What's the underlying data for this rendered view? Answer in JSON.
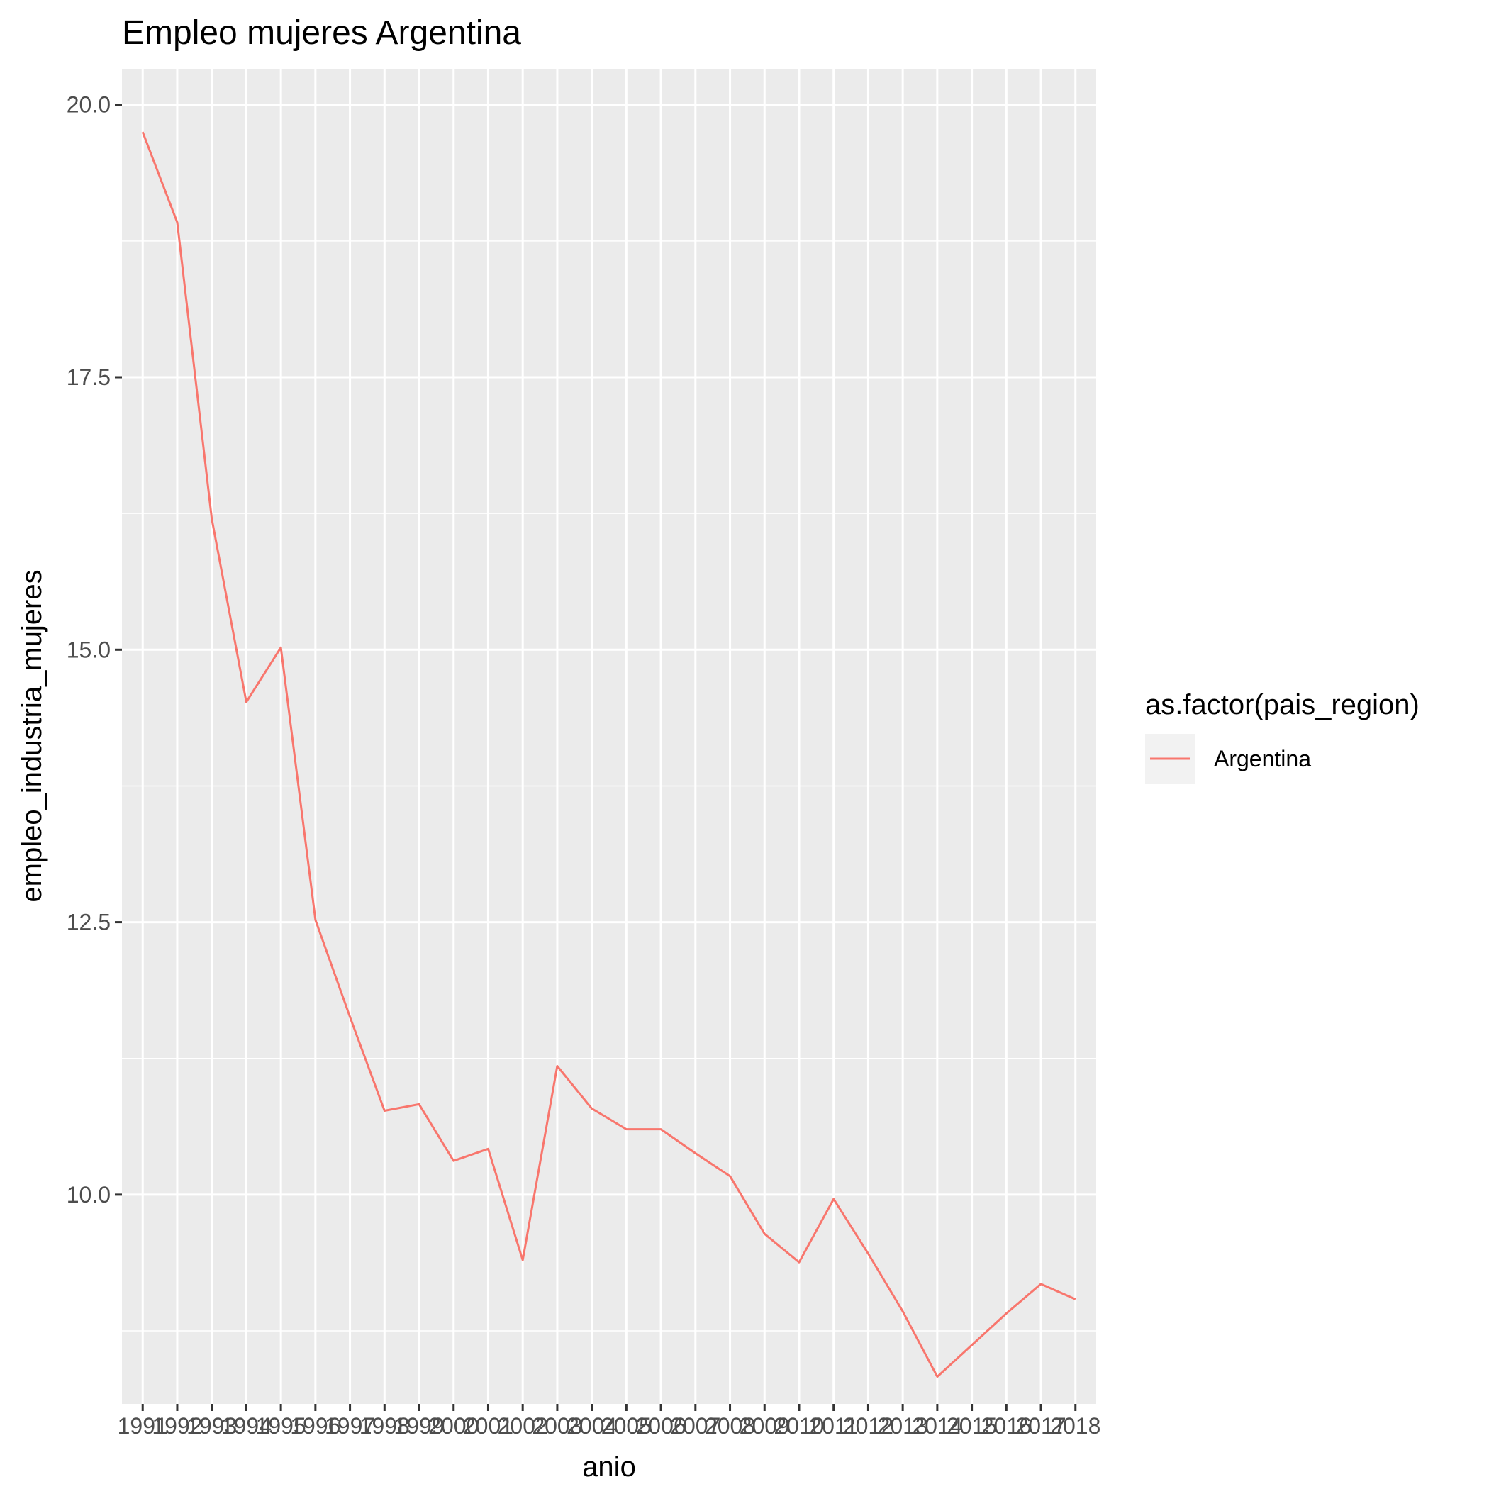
{
  "chart_data": {
    "type": "line",
    "title": "Empleo mujeres Argentina",
    "xlabel": "anio",
    "ylabel": "empleo_industria_mujeres",
    "categories": [
      "1991",
      "1992",
      "1993",
      "1994",
      "1995",
      "1996",
      "1997",
      "1998",
      "1999",
      "2000",
      "2001",
      "2002",
      "2003",
      "2004",
      "2005",
      "2006",
      "2007",
      "2008",
      "2009",
      "2010",
      "2011",
      "2012",
      "2013",
      "2014",
      "2015",
      "2016",
      "2017",
      "2018"
    ],
    "series": [
      {
        "name": "Argentina",
        "color": "#F8766D",
        "values": [
          19.75,
          18.92,
          16.2,
          14.52,
          15.02,
          12.52,
          11.63,
          10.77,
          10.83,
          10.31,
          10.42,
          9.4,
          11.18,
          10.79,
          10.6,
          10.6,
          10.38,
          10.17,
          9.64,
          9.38,
          9.96,
          9.46,
          8.93,
          8.33,
          8.62,
          8.91,
          9.18,
          9.04
        ]
      }
    ],
    "ylim": [
      8.08,
      20.33
    ],
    "yticks": [
      10.0,
      12.5,
      15.0,
      17.5,
      20.0
    ],
    "ytick_labels": [
      "10.0",
      "12.5",
      "15.0",
      "17.5",
      "20.0"
    ],
    "grid": true,
    "panel_color": "#EBEBEB",
    "legend": {
      "title": "as.factor(pais_region)",
      "position": "right",
      "entries": [
        "Argentina"
      ]
    }
  }
}
